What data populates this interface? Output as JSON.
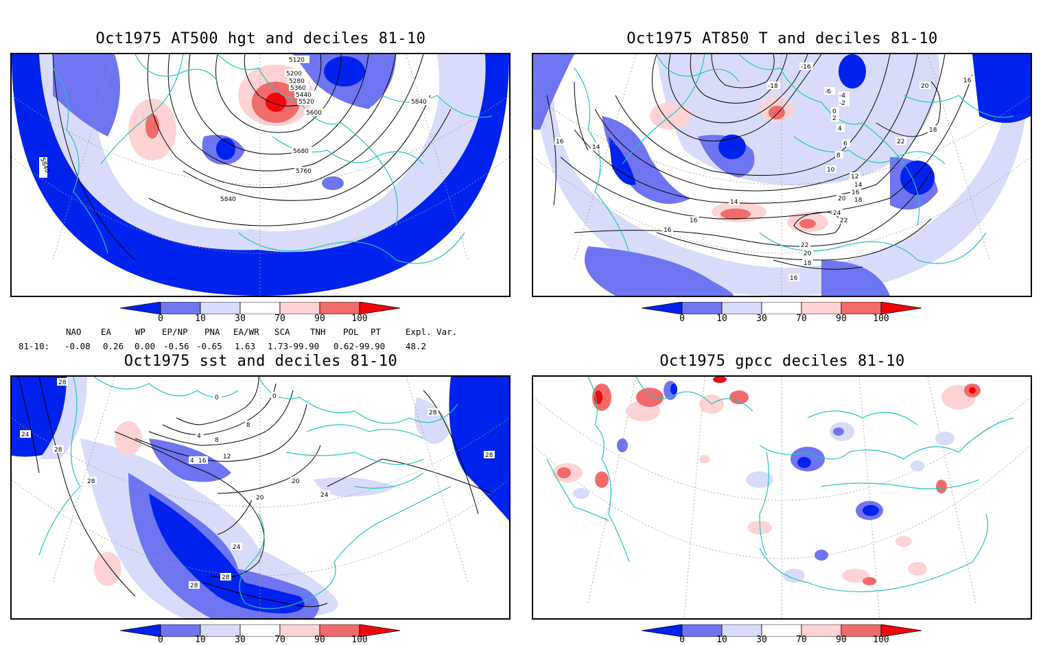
{
  "panels": [
    {
      "id": "p1",
      "title": "Oct1975 AT500 hgt and deciles 81-10",
      "contour_labels": [
        "5120",
        "5200",
        "5280",
        "5360",
        "5440",
        "5520",
        "5600",
        "5680",
        "5760",
        "5840",
        "5840",
        "5840"
      ]
    },
    {
      "id": "p2",
      "title": "Oct1975 AT850 T and deciles 81-10",
      "contour_labels": [
        "-16",
        "-18",
        "-6",
        "-4",
        "-2",
        "0",
        "2",
        "4",
        "6",
        "8",
        "10",
        "12",
        "14",
        "16",
        "18",
        "20",
        "22",
        "22",
        "24",
        "14",
        "16",
        "16",
        "16",
        "16",
        "18",
        "20",
        "22",
        "14",
        "16",
        "18",
        "20"
      ]
    },
    {
      "id": "p3",
      "title": "Oct1975 sst and deciles 81-10",
      "contour_labels": [
        "28",
        "24",
        "28",
        "28",
        "0",
        "4",
        "8",
        "12",
        "16",
        "20",
        "20",
        "24",
        "24",
        "28",
        "28",
        "28",
        "4",
        "8",
        "0",
        "28"
      ]
    },
    {
      "id": "p4",
      "title": "Oct1975 gpcc deciles 81-10",
      "contour_labels": []
    }
  ],
  "colorbar": {
    "ticks": [
      "0",
      "10",
      "30",
      "70",
      "90",
      "100"
    ],
    "colors": [
      "#0022ee",
      "#6f75f0",
      "#d8dcfa",
      "#ffffff",
      "#ffd3d3",
      "#f26a6a",
      "#f0050a"
    ]
  },
  "indices": {
    "headers": [
      "NAO",
      "EA",
      "WP",
      "EP/NP",
      "PNA",
      "EA/WR",
      "SCA",
      "TNH",
      "POL",
      "PT",
      "Expl. Var."
    ],
    "row_label": "81-10:",
    "values": [
      "-0.08",
      "0.26",
      "0.00",
      "-0.56",
      "-0.65",
      "1.63",
      "1.73",
      "-99.90",
      "0.62",
      "-99.90",
      "48.2"
    ]
  },
  "map_style": {
    "coast": "#1ec5bd",
    "contour": "#000000",
    "grid": "#999999"
  }
}
